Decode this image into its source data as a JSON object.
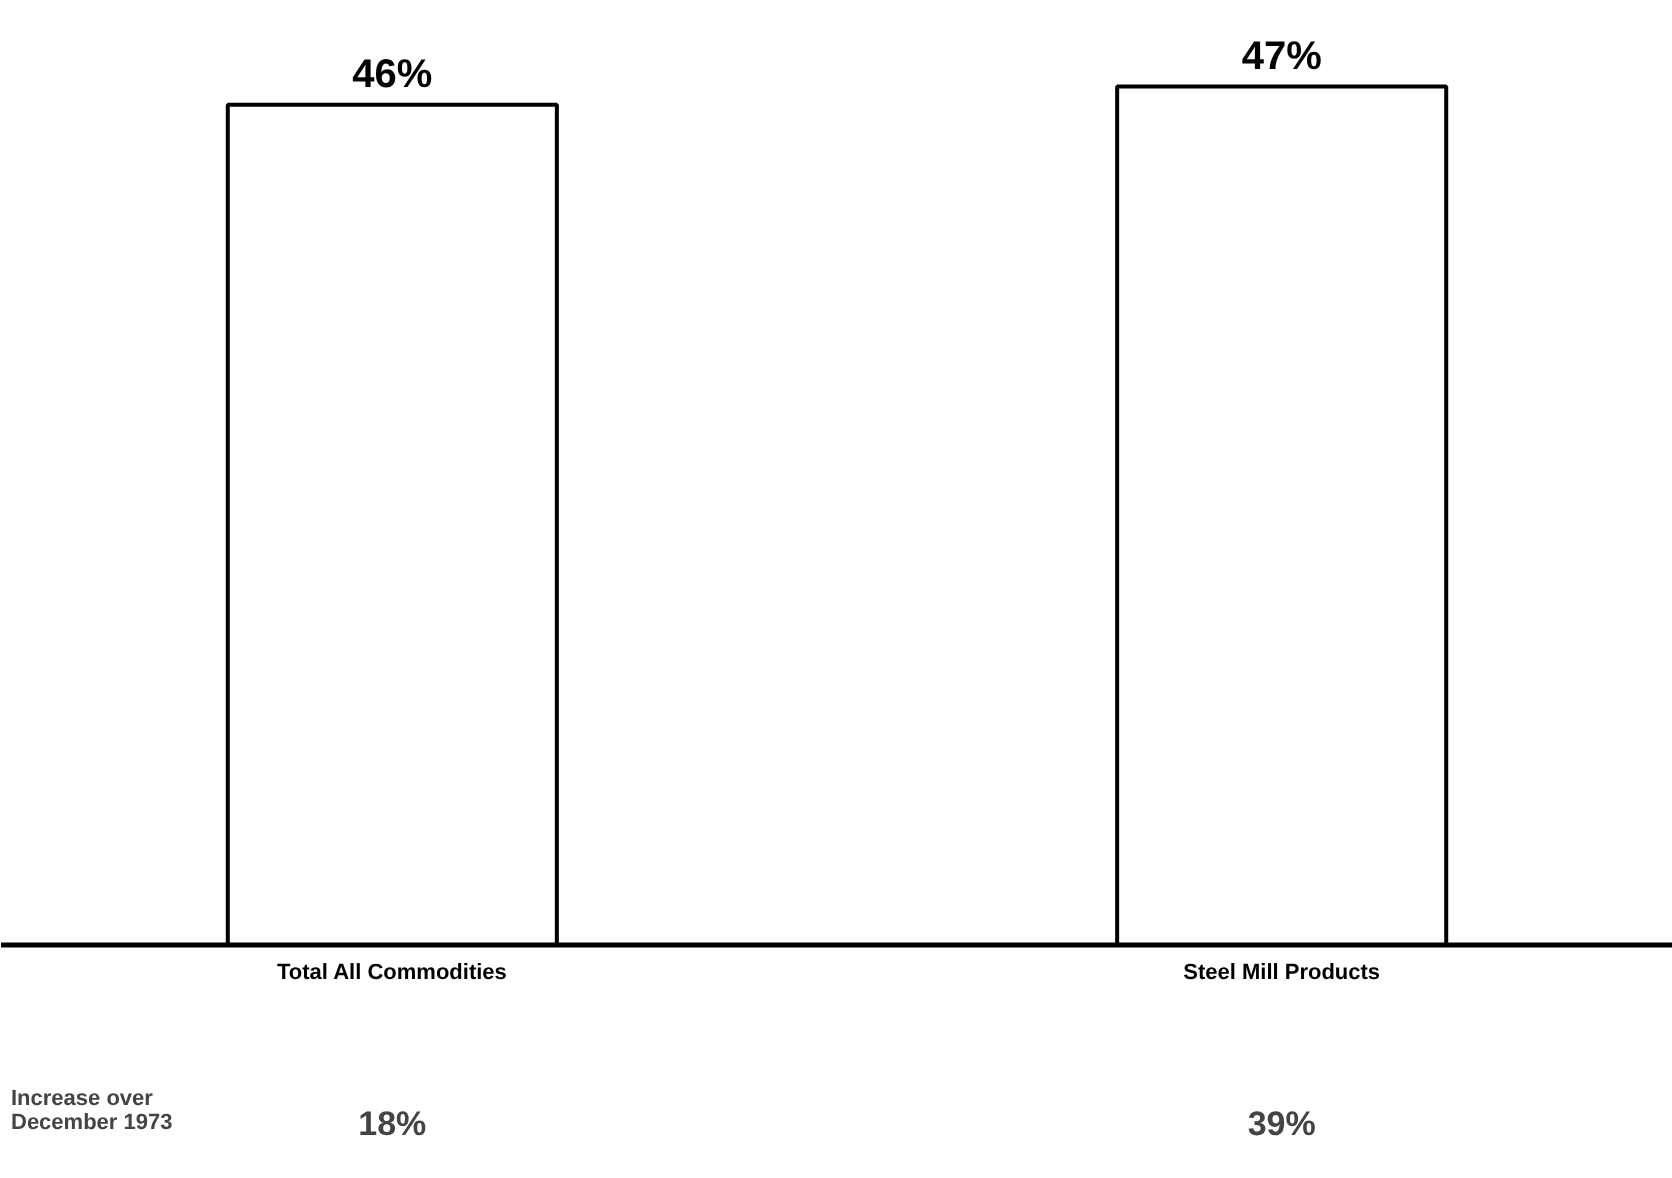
{
  "chart_data": {
    "type": "bar",
    "categories": [
      "Total All Commodities",
      "Steel Mill Products"
    ],
    "values": [
      46,
      47
    ],
    "value_labels": [
      "46%",
      "47%"
    ],
    "color": "#ffffff",
    "annotations": [
      "Increase over\nDecember 1973",
      "18%",
      "39%"
    ],
    "grid": false
  }
}
